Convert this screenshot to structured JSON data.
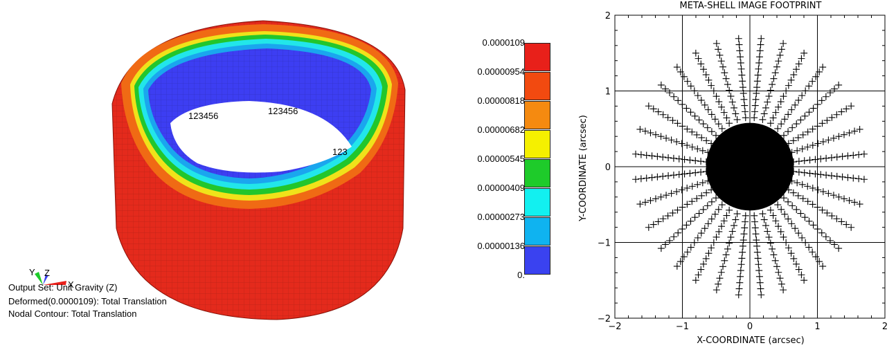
{
  "fe_model": {
    "node_labels": [
      "123456",
      "123456",
      "123"
    ],
    "triad": {
      "y": "Y",
      "z": "Z",
      "x": "X"
    },
    "info": {
      "line1": "Output Set: Unit Gravity (Z)",
      "line2": "Deformed(0.0000109): Total Translation",
      "line3": "Nodal Contour: Total Translation"
    }
  },
  "legend": {
    "labels": [
      "0.0000109",
      "0.00000954",
      "0.00000818",
      "0.00000682",
      "0.00000545",
      "0.00000409",
      "0.00000273",
      "0.00000136",
      "0."
    ],
    "colors": [
      "#e8201a",
      "#f24a10",
      "#f58a10",
      "#f5f000",
      "#1ecb2a",
      "#12f0f0",
      "#0fb3f0",
      "#3a42f0"
    ]
  },
  "chart_data": {
    "type": "scatter",
    "title": "META-SHELL IMAGE FOOTPRINT",
    "xlabel": "X-COORDINATE (arcsec)",
    "ylabel": "Y-COORDINATE (arcsec)",
    "xlim": [
      -2,
      2
    ],
    "ylim": [
      -2,
      2
    ],
    "xticks": [
      "−2",
      "−1",
      "0",
      "1",
      "2"
    ],
    "yticks": [
      "−2",
      "−1",
      "0",
      "1",
      "2"
    ],
    "grid_lines": [
      -1,
      0,
      1
    ],
    "marker": "+",
    "core_radius": 0.65,
    "spokes": {
      "count": 32,
      "inner_radius": 0.65,
      "outer_radius": 1.7,
      "points_per_spoke": 14
    }
  }
}
